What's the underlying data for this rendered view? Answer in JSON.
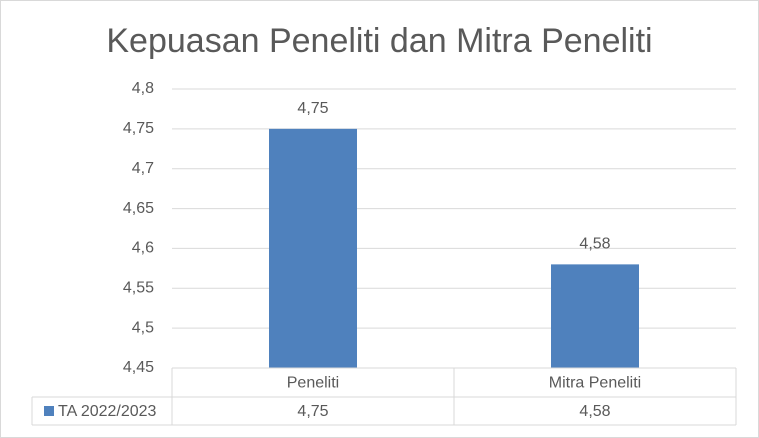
{
  "chart_data": {
    "type": "bar",
    "title": "Kepuasan Peneliti dan Mitra Peneliti",
    "categories": [
      "Peneliti",
      "Mitra Peneliti"
    ],
    "series": [
      {
        "name": "TA 2022/2023",
        "values": [
          4.75,
          4.58
        ],
        "value_labels": [
          "4,75",
          "4,58"
        ]
      }
    ],
    "ylim": [
      4.45,
      4.8
    ],
    "y_ticks": [
      "4,45",
      "4,5",
      "4,55",
      "4,6",
      "4,65",
      "4,7",
      "4,75",
      "4,8"
    ],
    "y_tick_values": [
      4.45,
      4.5,
      4.55,
      4.6,
      4.65,
      4.7,
      4.75,
      4.8
    ],
    "grid": true,
    "data_table": true,
    "colors": {
      "bar": "#4f81bd",
      "grid": "#d9d9d9",
      "text": "#595959"
    }
  }
}
